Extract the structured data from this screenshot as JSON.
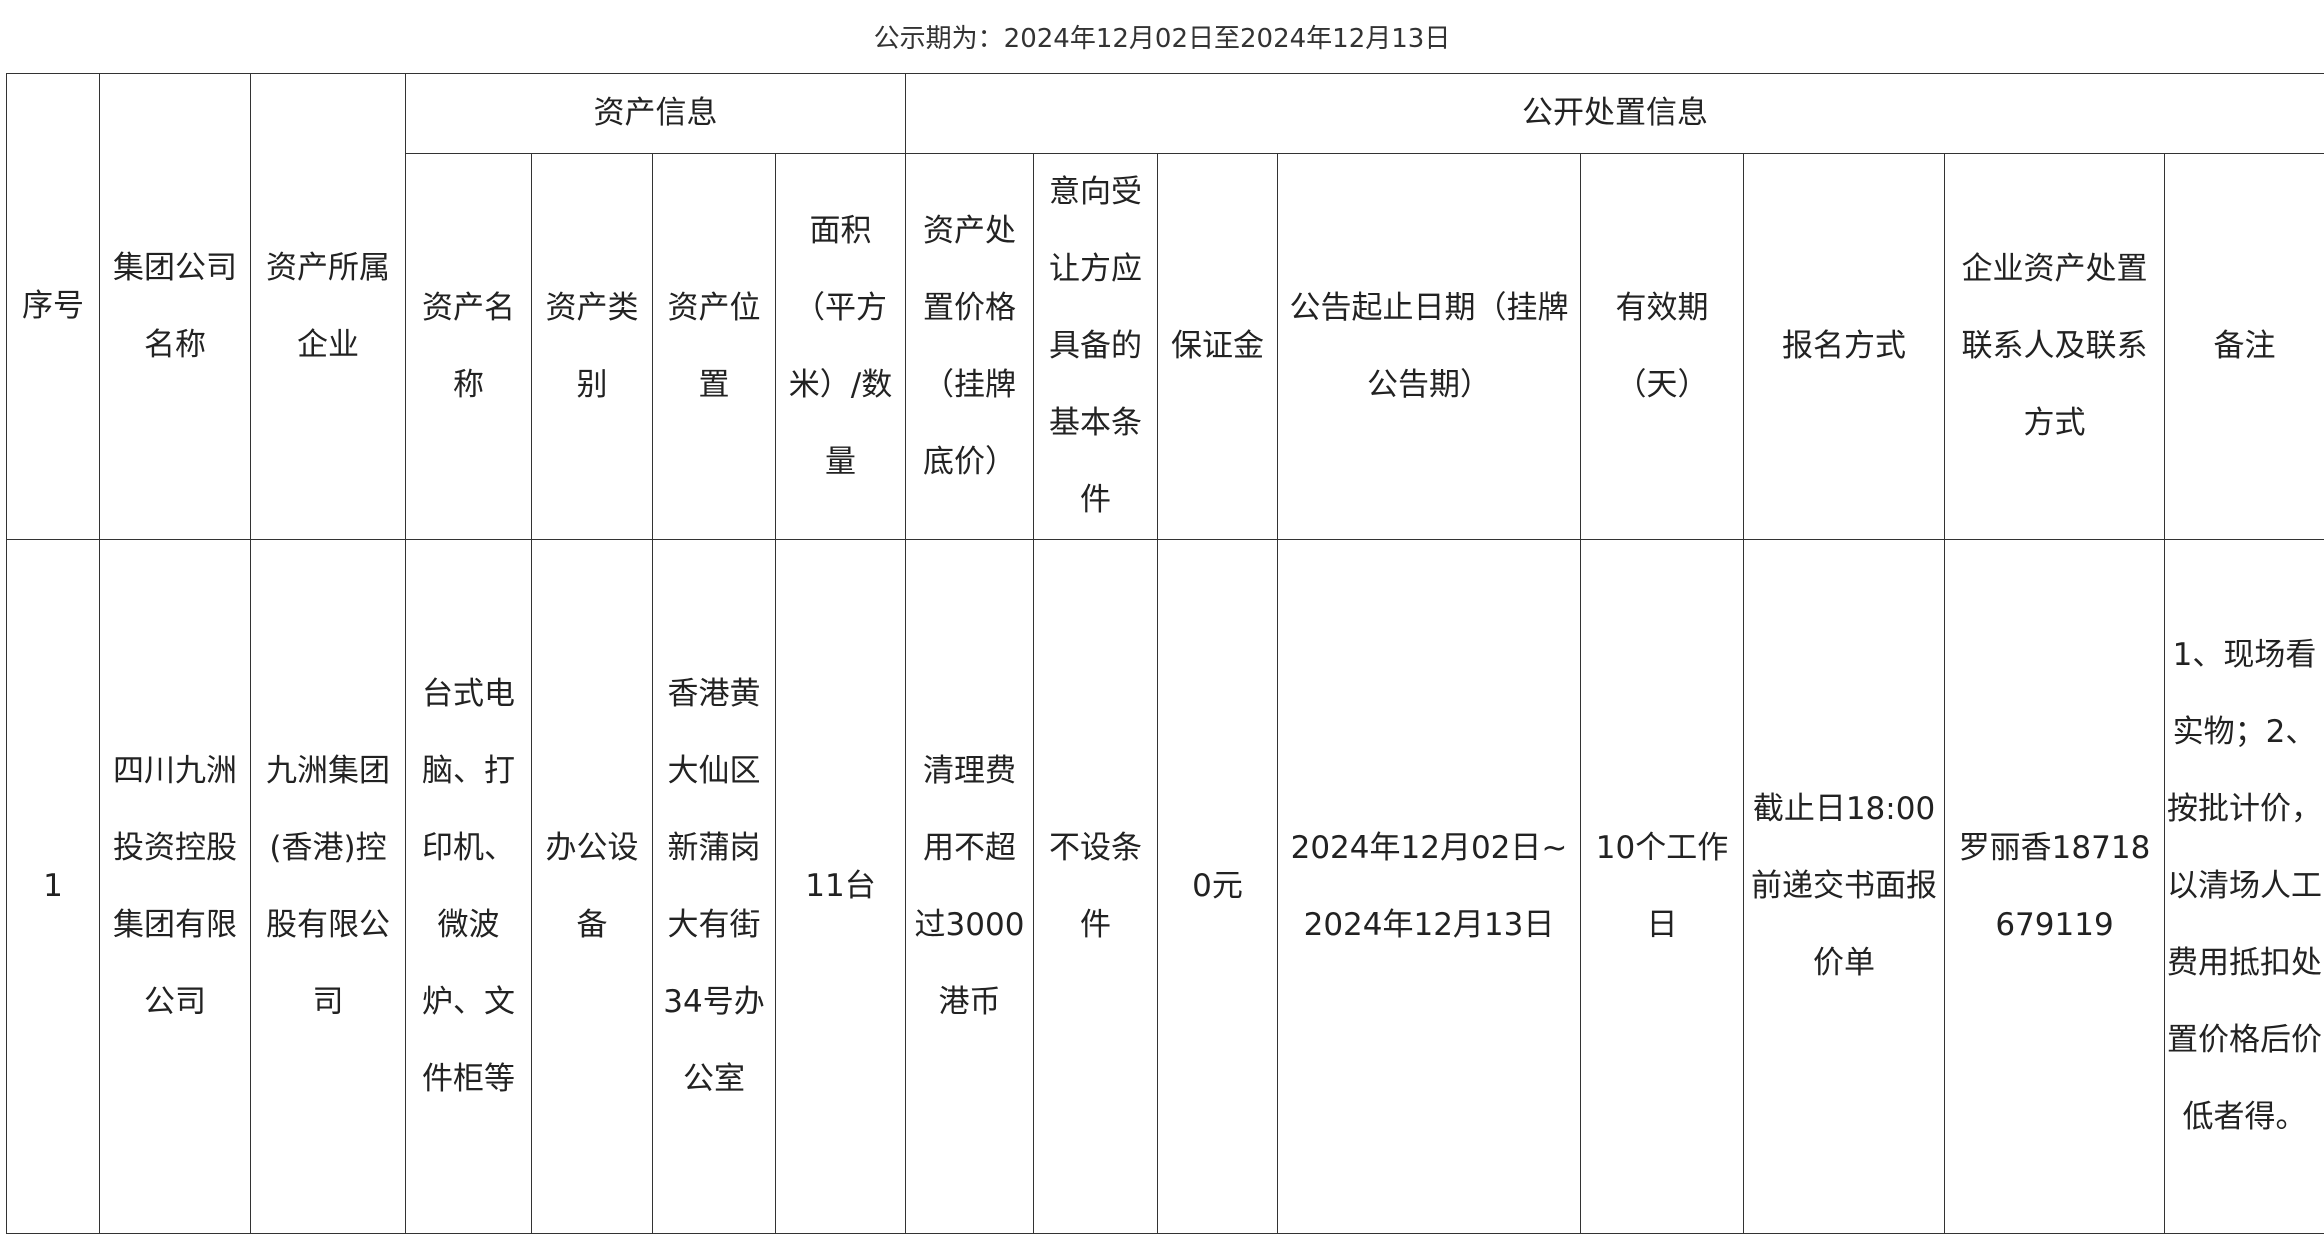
{
  "notice_period": "公示期为：2024年12月02日至2024年12月13日",
  "table": {
    "group_headers": {
      "asset_info": "资产信息",
      "disposal_info": "公开处置信息"
    },
    "headers": {
      "seq": "序号",
      "group_company": "集团公司名称",
      "owner_company": "资产所属企业",
      "asset_name": "资产名称",
      "asset_type": "资产类别",
      "asset_location": "资产位置",
      "area_quantity": "面积（平方米）/数量",
      "listing_price": "资产处置价格（挂牌底价）",
      "buyer_conditions": "意向受让方应具备的基本条件",
      "deposit": "保证金",
      "notice_dates": "公告起止日期（挂牌公告期）",
      "validity": "有效期（天）",
      "registration": "报名方式",
      "contact": "企业资产处置联系人及联系方式",
      "remarks": "备注"
    },
    "rows": [
      {
        "seq": "1",
        "group_company": "四川九洲投资控股集团有限公司",
        "owner_company": "九洲集团(香港)控股有限公司",
        "asset_name": "台式电脑、打印机、微波炉、文件柜等",
        "asset_type": "办公设备",
        "asset_location": "香港黄大仙区新蒲岗大有街34号办公室",
        "area_quantity": "11台",
        "listing_price": "清理费用不超过3000港币",
        "buyer_conditions": "不设条件",
        "deposit": "0元",
        "notice_dates": "2024年12月02日~2024年12月13日",
        "validity": "10个工作日",
        "registration": "截止日18:00前递交书面报价单",
        "contact": "罗丽香18718679119",
        "remarks": "1、现场看实物；2、按批计价，以清场人工费用抵扣处置价格后价低者得。"
      }
    ]
  }
}
